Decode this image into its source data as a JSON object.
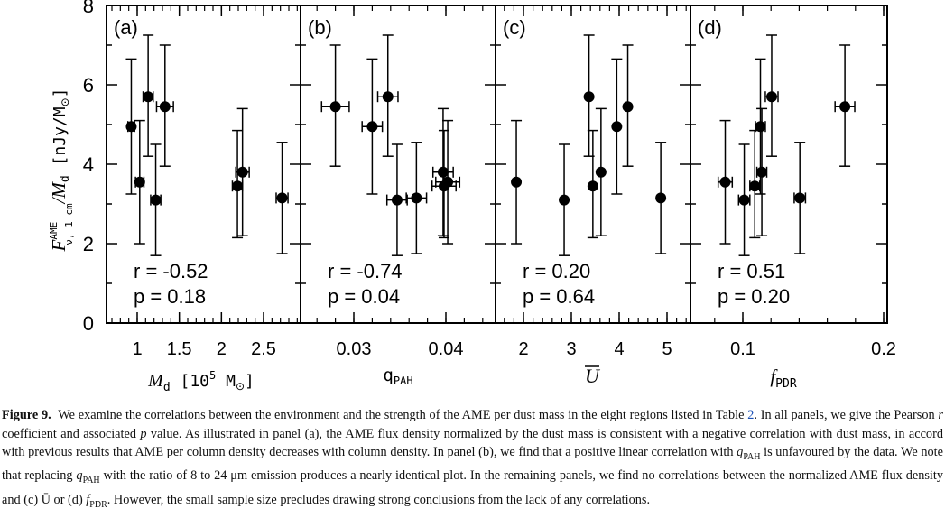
{
  "chart_data": [
    {
      "type": "scatter",
      "panel_label": "(a)",
      "xlabel": "M_d [10^5 M_⊙]",
      "ylabel": "F^AME_ν, 1 cm / M_d [nJy/M_⊙]",
      "x_ticks": [
        "1",
        "1.5",
        "2",
        "2.5"
      ],
      "y_ticks": [
        "0",
        "2",
        "4",
        "6",
        "8"
      ],
      "xlim": [
        0.7,
        2.95
      ],
      "ylim": [
        0,
        8
      ],
      "r_text": "r = -0.52",
      "p_text": "p = 0.18",
      "points": [
        {
          "x": 0.93,
          "y": 4.95,
          "xerr": 0.04,
          "yerr_lo": 1.7,
          "yerr_hi": 1.7
        },
        {
          "x": 1.03,
          "y": 3.55,
          "xerr": 0.05,
          "yerr_lo": 1.55,
          "yerr_hi": 1.55
        },
        {
          "x": 1.13,
          "y": 5.7,
          "xerr": 0.06,
          "yerr_lo": 1.5,
          "yerr_hi": 1.55
        },
        {
          "x": 1.22,
          "y": 3.1,
          "xerr": 0.06,
          "yerr_lo": 1.4,
          "yerr_hi": 1.4
        },
        {
          "x": 1.33,
          "y": 5.45,
          "xerr": 0.1,
          "yerr_lo": 1.5,
          "yerr_hi": 1.55
        },
        {
          "x": 2.19,
          "y": 3.45,
          "xerr": 0.06,
          "yerr_lo": 1.3,
          "yerr_hi": 1.4
        },
        {
          "x": 2.25,
          "y": 3.8,
          "xerr": 0.08,
          "yerr_lo": 1.6,
          "yerr_hi": 1.6
        },
        {
          "x": 2.72,
          "y": 3.15,
          "xerr": 0.07,
          "yerr_lo": 1.4,
          "yerr_hi": 1.4
        }
      ]
    },
    {
      "type": "scatter",
      "panel_label": "(b)",
      "xlabel": "q_PAH",
      "x_ticks": [
        "0.03",
        "0.04"
      ],
      "xlim": [
        0.023,
        0.047
      ],
      "ylim": [
        0,
        8
      ],
      "r_text": "r = -0.74",
      "p_text": "p = 0.04",
      "points": [
        {
          "x": 0.028,
          "y": 5.45,
          "xerr": 0.0015,
          "yerr_lo": 1.5,
          "yerr_hi": 1.55
        },
        {
          "x": 0.032,
          "y": 4.95,
          "xerr": 0.0011,
          "yerr_lo": 1.7,
          "yerr_hi": 1.7
        },
        {
          "x": 0.0337,
          "y": 5.7,
          "xerr": 0.0011,
          "yerr_lo": 1.5,
          "yerr_hi": 1.55
        },
        {
          "x": 0.0347,
          "y": 3.1,
          "xerr": 0.0011,
          "yerr_lo": 1.4,
          "yerr_hi": 1.4
        },
        {
          "x": 0.0368,
          "y": 3.15,
          "xerr": 0.0011,
          "yerr_lo": 1.4,
          "yerr_hi": 1.4
        },
        {
          "x": 0.0397,
          "y": 3.8,
          "xerr": 0.0011,
          "yerr_lo": 1.6,
          "yerr_hi": 1.6
        },
        {
          "x": 0.0398,
          "y": 3.45,
          "xerr": 0.0013,
          "yerr_lo": 1.3,
          "yerr_hi": 1.4
        },
        {
          "x": 0.0402,
          "y": 3.55,
          "xerr": 0.0013,
          "yerr_lo": 1.55,
          "yerr_hi": 1.55
        }
      ]
    },
    {
      "type": "scatter",
      "panel_label": "(c)",
      "xlabel": "Ū",
      "x_ticks": [
        "2",
        "3",
        "4",
        "5"
      ],
      "xlim": [
        1.5,
        5.4
      ],
      "ylim": [
        0,
        8
      ],
      "r_text": "r = 0.20",
      "p_text": "p = 0.64",
      "points": [
        {
          "x": 1.85,
          "y": 3.55,
          "xerr": 0.0,
          "yerr_lo": 1.55,
          "yerr_hi": 1.55
        },
        {
          "x": 2.85,
          "y": 3.1,
          "xerr": 0.0,
          "yerr_lo": 1.4,
          "yerr_hi": 1.4
        },
        {
          "x": 3.37,
          "y": 5.7,
          "xerr": 0.0,
          "yerr_lo": 1.5,
          "yerr_hi": 1.55
        },
        {
          "x": 3.45,
          "y": 3.45,
          "xerr": 0.0,
          "yerr_lo": 1.3,
          "yerr_hi": 1.4
        },
        {
          "x": 3.62,
          "y": 3.8,
          "xerr": 0.0,
          "yerr_lo": 1.6,
          "yerr_hi": 1.6
        },
        {
          "x": 3.95,
          "y": 4.95,
          "xerr": 0.0,
          "yerr_lo": 1.7,
          "yerr_hi": 1.7
        },
        {
          "x": 4.18,
          "y": 5.45,
          "xerr": 0.0,
          "yerr_lo": 1.5,
          "yerr_hi": 1.55
        },
        {
          "x": 4.87,
          "y": 3.15,
          "xerr": 0.0,
          "yerr_lo": 1.4,
          "yerr_hi": 1.4
        }
      ]
    },
    {
      "type": "scatter",
      "panel_label": "(d)",
      "xlabel": "f_PDR",
      "x_ticks": [
        "0.1",
        "0.2"
      ],
      "xlim": [
        0.065,
        0.205
      ],
      "ylim": [
        0,
        8
      ],
      "r_text": "r = 0.51",
      "p_text": "p = 0.20",
      "points": [
        {
          "x": 0.0875,
          "y": 3.55,
          "xerr": 0.005,
          "yerr_lo": 1.55,
          "yerr_hi": 1.55
        },
        {
          "x": 0.101,
          "y": 3.1,
          "xerr": 0.004,
          "yerr_lo": 1.4,
          "yerr_hi": 1.4
        },
        {
          "x": 0.1085,
          "y": 3.45,
          "xerr": 0.0035,
          "yerr_lo": 1.3,
          "yerr_hi": 1.4
        },
        {
          "x": 0.1125,
          "y": 4.95,
          "xerr": 0.0035,
          "yerr_lo": 1.7,
          "yerr_hi": 1.7
        },
        {
          "x": 0.1135,
          "y": 3.8,
          "xerr": 0.0035,
          "yerr_lo": 1.6,
          "yerr_hi": 1.6
        },
        {
          "x": 0.1205,
          "y": 5.7,
          "xerr": 0.0045,
          "yerr_lo": 1.5,
          "yerr_hi": 1.55
        },
        {
          "x": 0.1405,
          "y": 3.15,
          "xerr": 0.004,
          "yerr_lo": 1.4,
          "yerr_hi": 1.4
        },
        {
          "x": 0.1725,
          "y": 5.45,
          "xerr": 0.007,
          "yerr_lo": 1.5,
          "yerr_hi": 1.55
        }
      ]
    }
  ],
  "axis_text": {
    "y_main": "F",
    "y_sup": "AME",
    "y_sub": "ν, 1 cm",
    "y_div": "/M",
    "y_d": "d",
    "y_units_open": " [nJy/M",
    "y_sun": "⊙",
    "y_units_close": "]",
    "xa_M": "M",
    "xa_d": "d",
    "xa_units_open": " [10",
    "xa_exp": "5",
    "xa_units_mid": " M",
    "xa_sun": "⊙",
    "xa_units_close": "]",
    "xb_q": "q",
    "xb_sub": "PAH",
    "xc_U": "U",
    "xd_f": "f",
    "xd_sub": "PDR"
  },
  "caption": {
    "label": "Figure 9.",
    "s1": "We examine the correlations between the environment and the strength of the AME per dust mass in the eight regions listed in Table ",
    "table_ref": "2",
    "s2": ". In all panels, we give the Pearson ",
    "r": "r",
    "s3": " coefficient and associated ",
    "p": "p",
    "s4": " value. As illustrated in panel (a), the AME flux density normalized by the dust mass is consistent with a negative correlation with dust mass, in accord with previous results that AME per column density decreases with column density. In panel (b), we find that a positive linear correlation with ",
    "q1": "q",
    "q1_sub": "PAH",
    "s5": " is unfavoured by the data. We note that replacing ",
    "q2": "q",
    "q2_sub": "PAH",
    "s6": " with the ratio of 8 to 24 μm emission produces a nearly identical plot. In the remaining panels, we find no correlations between the normalized AME flux density and (c) Ū or (d) ",
    "f": "f",
    "f_sub": "PDR",
    "s7": ". However, the small sample size precludes drawing strong conclusions from the lack of any correlations."
  }
}
